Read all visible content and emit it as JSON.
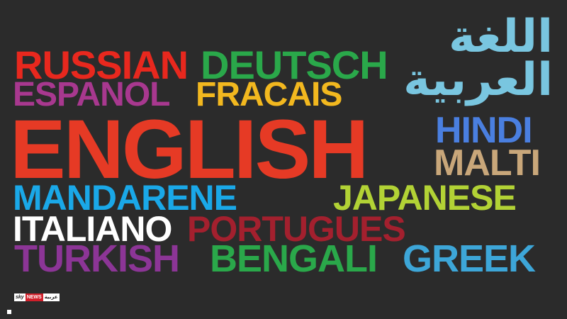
{
  "words": {
    "russian": "RUSSIAN",
    "deutsch": "DEUTSCH",
    "arabic_line1": "اللغة",
    "arabic_line2": "العربية",
    "espanol": "ESPANOL",
    "fracais": "FRACAIS",
    "english": "ENGLISH",
    "hindi": "HINDI",
    "malti": "MALTI",
    "mandarene": "MANDARENE",
    "japanese": "JAPANESE",
    "italiano": "ITALIANO",
    "portugues": "PORTUGUES",
    "turkish": "TURKISH",
    "bengali": "BENGALI",
    "greek": "GREEK"
  },
  "colors": {
    "background": "#2b2b2b",
    "russian": "#e8281e",
    "deutsch": "#2aa84a",
    "arabic": "#79c6e0",
    "espanol": "#a8388f",
    "fracais": "#f2b81f",
    "english": "#e63a25",
    "hindi": "#4a7fe0",
    "malti": "#c9a77a",
    "mandarene": "#1aa8e8",
    "japanese": "#b2d235",
    "italiano": "#ffffff",
    "portugues": "#a3202e",
    "turkish": "#8c3596",
    "bengali": "#2aa84a",
    "greek": "#3da6d8"
  },
  "watermark": {
    "sky": "sky",
    "news": "NEWS",
    "arabic": "عربية"
  }
}
